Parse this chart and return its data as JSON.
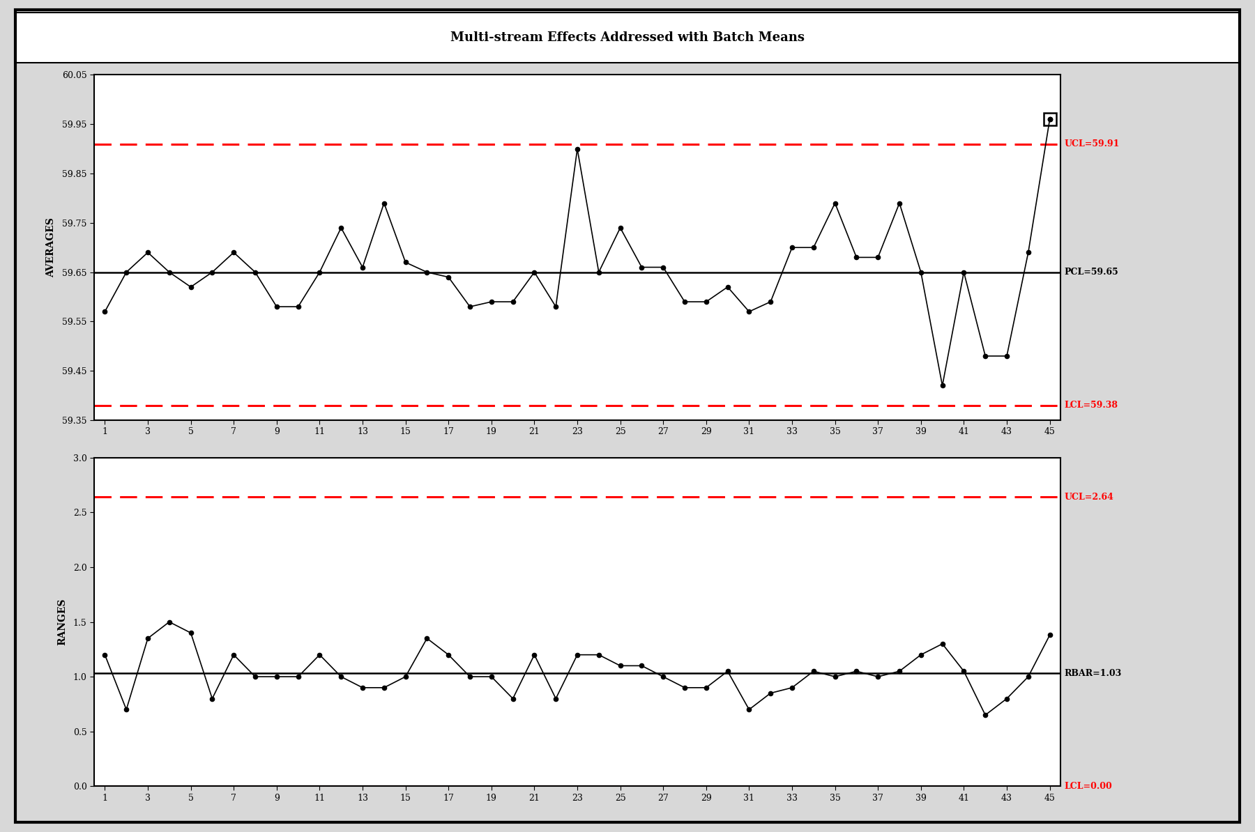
{
  "title": "Multi-stream Effects Addressed with Batch Means",
  "averages": [
    59.57,
    59.65,
    59.69,
    59.65,
    59.62,
    59.65,
    59.69,
    59.65,
    59.58,
    59.58,
    59.65,
    59.74,
    59.66,
    59.79,
    59.67,
    59.65,
    59.64,
    59.58,
    59.59,
    59.59,
    59.65,
    59.58,
    59.9,
    59.65,
    59.74,
    59.66,
    59.66,
    59.59,
    59.59,
    59.62,
    59.57,
    59.59,
    59.7,
    59.7,
    59.79,
    59.68,
    59.68,
    59.79,
    59.65,
    59.42,
    59.65,
    59.48,
    59.48,
    59.69,
    59.96
  ],
  "ranges": [
    1.2,
    0.7,
    1.35,
    1.5,
    1.4,
    0.8,
    1.2,
    1.0,
    1.0,
    1.0,
    1.2,
    1.0,
    0.9,
    0.9,
    1.0,
    1.35,
    1.2,
    1.0,
    1.0,
    0.8,
    1.2,
    0.8,
    1.2,
    1.2,
    1.1,
    1.1,
    1.0,
    0.9,
    0.9,
    1.05,
    0.7,
    0.85,
    0.9,
    1.05,
    1.0,
    1.05,
    1.0,
    1.05,
    1.2,
    1.3,
    1.05,
    0.65,
    0.8,
    1.0,
    1.38
  ],
  "UCL_avg": 59.91,
  "LCL_avg": 59.38,
  "PCL_avg": 59.65,
  "UCL_range": 2.64,
  "LCL_range": 0.0,
  "RBAR": 1.03,
  "avg_ylim": [
    59.35,
    60.05
  ],
  "range_ylim": [
    0.0,
    3.0
  ],
  "avg_yticks": [
    59.35,
    59.45,
    59.55,
    59.65,
    59.75,
    59.85,
    59.95,
    60.05
  ],
  "range_yticks": [
    0.0,
    0.5,
    1.0,
    1.5,
    2.0,
    2.5,
    3.0
  ],
  "x_ticks": [
    1,
    3,
    5,
    7,
    9,
    11,
    13,
    15,
    17,
    19,
    21,
    23,
    25,
    27,
    29,
    31,
    33,
    35,
    37,
    39,
    41,
    43,
    45
  ],
  "line_color": "#000000",
  "control_line_color": "#ff0000",
  "center_line_color": "#000000",
  "bg_color": "#ffffff",
  "outer_bg": "#d8d8d8",
  "ylabel_avg": "AVERAGES",
  "ylabel_range": "RANGES",
  "title_fontsize": 13,
  "label_fontsize": 10,
  "tick_fontsize": 9,
  "annotation_fontsize": 9,
  "special_point_index": 44,
  "avg_ytick_labels": [
    "59.35",
    "59.45",
    "59.55",
    "59.65",
    "59.75",
    "59.85",
    "59.95",
    "60.05"
  ]
}
